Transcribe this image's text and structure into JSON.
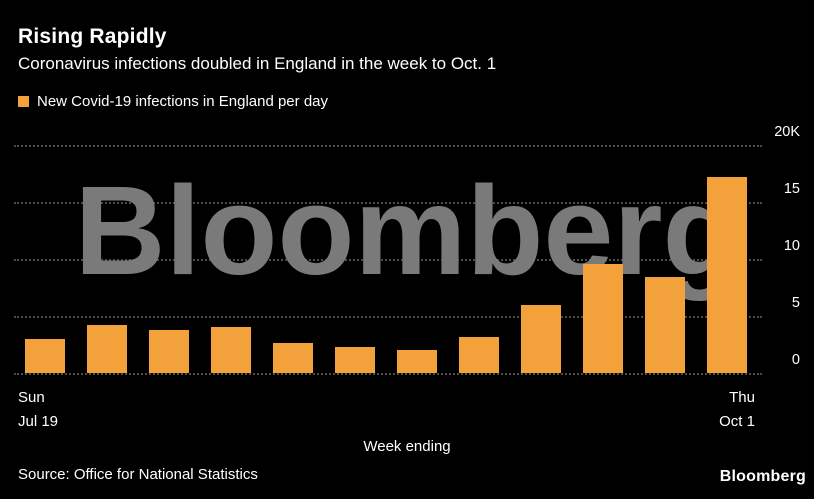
{
  "header": {
    "title": "Rising Rapidly",
    "subtitle": "Coronavirus infections doubled in England in the week to Oct. 1"
  },
  "legend": {
    "label": "New Covid-19 infections in England per day",
    "color": "#f2a13b"
  },
  "watermark": "Bloomberg",
  "chart_data": {
    "type": "bar",
    "title": "Rising Rapidly",
    "subtitle": "Coronavirus infections doubled in England in the week to Oct. 1",
    "series_label": "New Covid-19 infections in England per day",
    "xlabel": "Week ending",
    "ylabel": "",
    "ylim": [
      0,
      20000
    ],
    "grid": "horizontal-dotted",
    "legend_position": "top-left",
    "bar_color": "#f2a13b",
    "yticks": [
      {
        "value": 20000,
        "label": "20K"
      },
      {
        "value": 15000,
        "label": "15"
      },
      {
        "value": 10000,
        "label": "10"
      },
      {
        "value": 5000,
        "label": "5"
      },
      {
        "value": 0,
        "label": "0"
      }
    ],
    "x_first_label": [
      "Sun",
      "Jul 19"
    ],
    "x_last_label": [
      "Thu",
      "Oct 1"
    ],
    "values": [
      3000,
      4200,
      3800,
      4000,
      2600,
      2300,
      2000,
      3200,
      6000,
      9600,
      8400,
      17200
    ]
  },
  "footer": {
    "source": "Source: Office for National Statistics",
    "logo": "Bloomberg"
  }
}
